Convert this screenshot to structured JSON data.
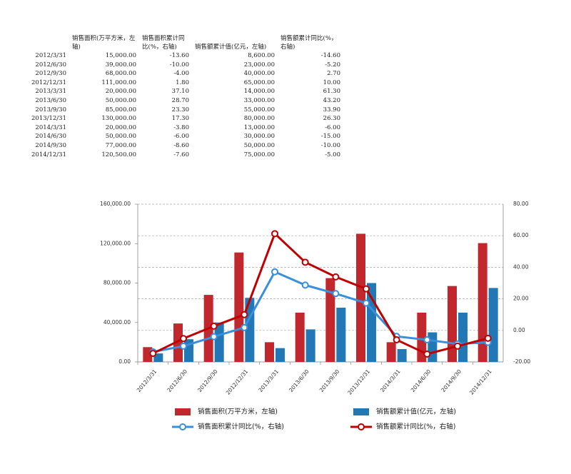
{
  "table": {
    "header": [
      "销售面积(万平方米，左轴)",
      "销售面积累计同比(%，右轴)",
      "销售额累计值(亿元，左轴)",
      "销售额累计同比(%，右轴)"
    ],
    "rows": [
      [
        "2012/3/31",
        "15,000.00",
        "-13.60",
        "8,600.00",
        "-14.60"
      ],
      [
        "2012/6/30",
        "39,000.00",
        "-10.00",
        "23,000.00",
        "-5.20"
      ],
      [
        "2012/9/30",
        "68,000.00",
        "-4.00",
        "40,000.00",
        "2.70"
      ],
      [
        "2012/12/31",
        "111,000.00",
        "1.80",
        "65,000.00",
        "10.00"
      ],
      [
        "2013/3/31",
        "20,000.00",
        "37.10",
        "14,000.00",
        "61.30"
      ],
      [
        "2013/6/30",
        "50,000.00",
        "28.70",
        "33,000.00",
        "43.20"
      ],
      [
        "2013/9/30",
        "85,000.00",
        "23.30",
        "55,000.00",
        "33.90"
      ],
      [
        "2013/12/31",
        "130,000.00",
        "17.30",
        "80,000.00",
        "26.30"
      ],
      [
        "2014/3/31",
        "20,000.00",
        "-3.80",
        "13,000.00",
        "-6.00"
      ],
      [
        "2014/6/30",
        "50,000.00",
        "-6.00",
        "30,000.00",
        "-15.00"
      ],
      [
        "2014/9/30",
        "77,000.00",
        "-8.60",
        "50,000.00",
        "-10.00"
      ],
      [
        "2014/12/31",
        "120,500.00",
        "-7.60",
        "75,000.00",
        "-5.00"
      ]
    ]
  },
  "chart_data": {
    "type": "bar-line",
    "categories": [
      "2012/3/31",
      "2012/6/30",
      "2012/9/30",
      "2012/12/31",
      "2013/3/31",
      "2013/6/30",
      "2013/9/30",
      "2013/12/31",
      "2014/3/31",
      "2014/6/30",
      "2014/9/30",
      "2014/12/31"
    ],
    "series": [
      {
        "name": "销售面积(万平方米，左轴)",
        "type": "bar",
        "color": "#c0282e",
        "values": [
          15000,
          39000,
          68000,
          111000,
          20000,
          50000,
          85000,
          130000,
          20000,
          50000,
          77000,
          120500
        ]
      },
      {
        "name": "销售额累计值(亿元，左轴)",
        "type": "bar",
        "color": "#2178b4",
        "values": [
          8600,
          23000,
          40000,
          65000,
          14000,
          33000,
          55000,
          80000,
          13000,
          30000,
          50000,
          75000
        ]
      },
      {
        "name": "销售面积累计同比(%，右轴)",
        "type": "line",
        "axis": "y2",
        "color": "#3a8fdc",
        "values": [
          -13.6,
          -10,
          -4,
          1.8,
          37.1,
          28.7,
          23.3,
          17.3,
          -3.8,
          -6,
          -8.6,
          -7.6
        ]
      },
      {
        "name": "销售额累计同比(%，右轴)",
        "type": "line",
        "axis": "y2",
        "color": "#c00000",
        "values": [
          -14.6,
          -5.2,
          2.7,
          10,
          61.3,
          43.2,
          33.9,
          26.3,
          -6,
          -15,
          -10,
          -5
        ]
      }
    ],
    "ylim": [
      0,
      160000
    ],
    "yticks": [
      {
        "value": 0,
        "label": "0.00"
      },
      {
        "value": 40000,
        "label": "40,000.00"
      },
      {
        "value": 80000,
        "label": "80,000.00"
      },
      {
        "value": 120000,
        "label": "120,000.00"
      },
      {
        "value": 160000,
        "label": "160,000.00"
      }
    ],
    "y2lim": [
      -20,
      80
    ],
    "y2ticks": [
      {
        "value": -20,
        "label": "-20.00"
      },
      {
        "value": 0,
        "label": "0.00"
      },
      {
        "value": 20,
        "label": "20.00"
      },
      {
        "value": 40,
        "label": "40.00"
      },
      {
        "value": 60,
        "label": "60.00"
      },
      {
        "value": 80,
        "label": "80.00"
      }
    ],
    "grid": "y2"
  }
}
